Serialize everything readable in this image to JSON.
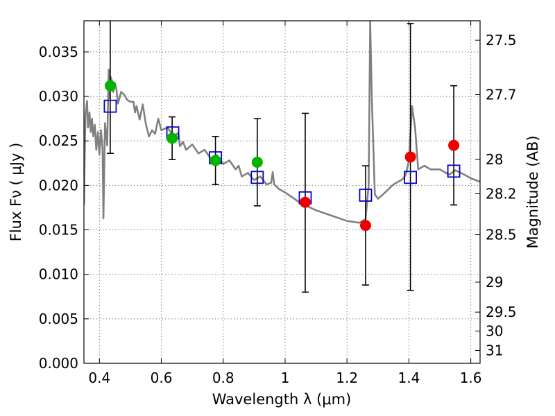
{
  "chart_data": {
    "type": "scatter",
    "title": "",
    "xlabel": "Wavelength  λ (μm)",
    "ylabel": "Flux  Fν  ( μJy )",
    "y2label": "Magnitude (AB)",
    "xlim": [
      0.35,
      1.63
    ],
    "ylim": [
      0.0,
      0.0385
    ],
    "grid": true,
    "legend": "none",
    "x_ticks": [
      0.4,
      0.6,
      0.8,
      1.0,
      1.2,
      1.4,
      1.6
    ],
    "x_tick_labels": [
      "0.4",
      "0.6",
      "0.8",
      "1",
      "1.2",
      "1.4",
      "1.6"
    ],
    "y_ticks": [
      0.0,
      0.005,
      0.01,
      0.015,
      0.02,
      0.025,
      0.03,
      0.035
    ],
    "y_tick_labels": [
      "0.000",
      "0.005",
      "0.010",
      "0.015",
      "0.020",
      "0.025",
      "0.030",
      "0.035"
    ],
    "y2_ticks": [
      27.5,
      27.7,
      28,
      28.2,
      28.5,
      29,
      29.5,
      30,
      31
    ],
    "y2_tick_labels": [
      "27.5",
      "27.7",
      "28",
      "28.2",
      "28.5",
      "29",
      "29.5",
      "30",
      "31"
    ],
    "colors": {
      "model": "#808080",
      "observed_optical": "#00b400",
      "observed_nir": "#ee0000",
      "model_photometry": "#0000cc",
      "error_bar": "#000000",
      "grid": "#808080"
    },
    "series": [
      {
        "key": "model_spectrum",
        "kind": "line",
        "x": [
          0.35,
          0.355,
          0.36,
          0.363,
          0.368,
          0.372,
          0.376,
          0.38,
          0.385,
          0.39,
          0.395,
          0.4,
          0.405,
          0.41,
          0.413,
          0.418,
          0.425,
          0.43,
          0.432,
          0.436,
          0.44,
          0.445,
          0.45,
          0.455,
          0.46,
          0.465,
          0.47,
          0.48,
          0.49,
          0.5,
          0.51,
          0.515,
          0.52,
          0.53,
          0.54,
          0.55,
          0.56,
          0.57,
          0.58,
          0.59,
          0.6,
          0.62,
          0.64,
          0.655,
          0.66,
          0.67,
          0.68,
          0.7,
          0.72,
          0.74,
          0.76,
          0.78,
          0.8,
          0.82,
          0.84,
          0.85,
          0.86,
          0.88,
          0.9,
          0.92,
          0.94,
          0.955,
          0.96,
          0.965,
          0.98,
          1.0,
          1.05,
          1.1,
          1.15,
          1.2,
          1.24,
          1.26,
          1.27,
          1.275,
          1.28,
          1.29,
          1.3,
          1.32,
          1.35,
          1.38,
          1.39,
          1.4,
          1.41,
          1.42,
          1.43,
          1.45,
          1.47,
          1.5,
          1.53,
          1.55,
          1.58,
          1.6,
          1.63
        ],
        "y": [
          0.0178,
          0.028,
          0.0295,
          0.0265,
          0.0282,
          0.026,
          0.0275,
          0.0255,
          0.0268,
          0.024,
          0.026,
          0.0235,
          0.0262,
          0.0242,
          0.0163,
          0.027,
          0.0245,
          0.033,
          0.0298,
          0.0322,
          0.0318,
          0.0305,
          0.0315,
          0.0308,
          0.0292,
          0.0298,
          0.0305,
          0.0302,
          0.0296,
          0.0294,
          0.0294,
          0.0282,
          0.0289,
          0.0274,
          0.0291,
          0.0269,
          0.0255,
          0.0262,
          0.0258,
          0.0275,
          0.0262,
          0.0265,
          0.0255,
          0.0259,
          0.0244,
          0.0249,
          0.024,
          0.0246,
          0.0236,
          0.024,
          0.023,
          0.0234,
          0.0224,
          0.0228,
          0.0218,
          0.0222,
          0.021,
          0.0214,
          0.0206,
          0.021,
          0.0201,
          0.0203,
          0.0215,
          0.0201,
          0.0196,
          0.0192,
          0.018,
          0.0172,
          0.0166,
          0.016,
          0.0158,
          0.0162,
          0.02,
          0.0385,
          0.03,
          0.019,
          0.0185,
          0.0191,
          0.0201,
          0.0207,
          0.0212,
          0.0228,
          0.0289,
          0.0265,
          0.0218,
          0.0222,
          0.0218,
          0.0218,
          0.0212,
          0.0217,
          0.0212,
          0.0208,
          0.0204
        ]
      },
      {
        "key": "observed_optical",
        "kind": "points",
        "marker": "circle",
        "x": [
          0.435,
          0.635,
          0.775,
          0.91
        ],
        "y": [
          0.0312,
          0.0253,
          0.0228,
          0.0226
        ],
        "err_low": [
          0.0076,
          0.0024,
          0.0027,
          0.0049
        ],
        "err_high": [
          0.0075,
          0.0024,
          0.0027,
          0.0049
        ]
      },
      {
        "key": "observed_nir",
        "kind": "points",
        "marker": "circle",
        "x": [
          1.065,
          1.26,
          1.405,
          1.545
        ],
        "y": [
          0.0181,
          0.0155,
          0.0232,
          0.0245
        ],
        "err_low": [
          0.0101,
          0.0067,
          0.015,
          0.0067
        ],
        "err_high": [
          0.01,
          0.0067,
          0.015,
          0.0067
        ]
      },
      {
        "key": "model_photometry",
        "kind": "points",
        "marker": "open-square",
        "x": [
          0.435,
          0.637,
          0.775,
          0.91,
          1.065,
          1.26,
          1.405,
          1.545
        ],
        "y": [
          0.0289,
          0.0259,
          0.0231,
          0.0209,
          0.0186,
          0.0189,
          0.0209,
          0.0216
        ]
      }
    ]
  }
}
